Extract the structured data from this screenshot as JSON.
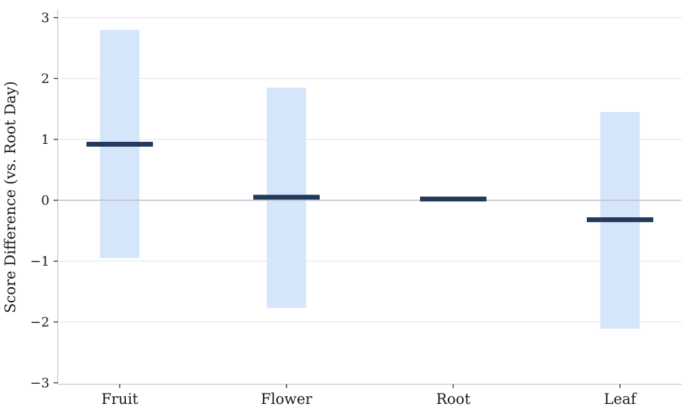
{
  "chart_data": {
    "type": "bar",
    "subtype": "range-band-with-mean-marker",
    "title": "",
    "xlabel": "",
    "ylabel": "Score Difference (vs. Root Day)",
    "categories": [
      "Fruit",
      "Flower",
      "Root",
      "Leaf"
    ],
    "series": [
      {
        "name": "mean",
        "values": [
          0.92,
          0.05,
          0.02,
          -0.32
        ]
      },
      {
        "name": "range_low",
        "values": [
          -0.95,
          -1.77,
          null,
          -2.11
        ]
      },
      {
        "name": "range_high",
        "values": [
          2.8,
          1.85,
          null,
          1.45
        ]
      }
    ],
    "ylim": [
      -3,
      3
    ],
    "yticks": [
      3,
      2,
      1,
      0,
      -1,
      -2,
      -3
    ],
    "grid": true,
    "legend": "none",
    "colors": {
      "range_band": "#d5e5fa",
      "mean_line": "#23395b",
      "zero_line": "#b7bdc9",
      "gridline": "#e6e6e6",
      "spine": "#c6c6c6",
      "tick": "#333333",
      "text": "#1a1a1a",
      "background": "#ffffff"
    }
  }
}
